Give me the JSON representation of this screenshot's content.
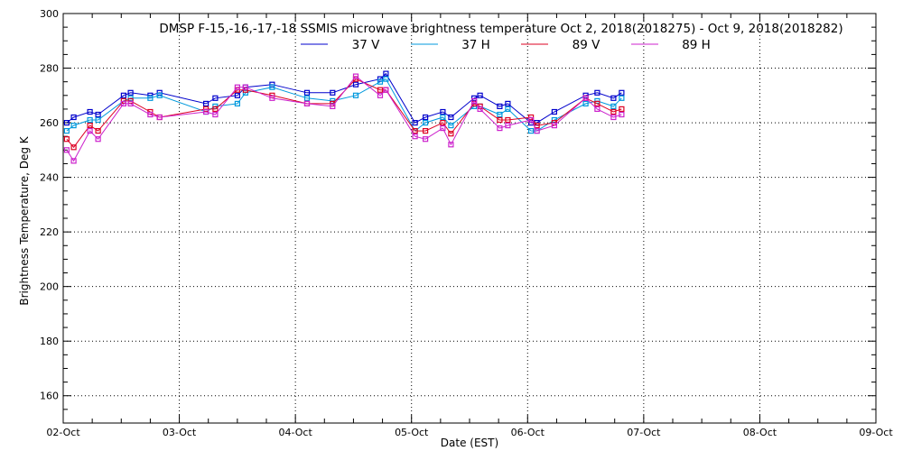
{
  "chart_data": {
    "type": "line",
    "title": "DMSP F-15,-16,-17,-18 SSMIS microwave brightness temperature Oct  2, 2018(2018275) - Oct  9, 2018(2018282)",
    "xlabel": "Date (EST)",
    "ylabel": "Brightness Temperature, Deg K",
    "xlim": [
      0,
      7
    ],
    "ylim": [
      150,
      300
    ],
    "x_ticks": [
      "02-Oct",
      "03-Oct",
      "04-Oct",
      "05-Oct",
      "06-Oct",
      "07-Oct",
      "08-Oct",
      "09-Oct"
    ],
    "y_ticks": [
      160,
      180,
      200,
      220,
      240,
      260,
      280,
      300
    ],
    "grid": true,
    "legend_position": "top-center",
    "series": [
      {
        "name": "37 V",
        "color": "#0000cc",
        "x": [
          0.03,
          0.09,
          0.23,
          0.3,
          0.52,
          0.58,
          0.75,
          0.83,
          1.23,
          1.31,
          1.5,
          1.57,
          1.8,
          2.1,
          2.32,
          2.52,
          2.73,
          2.78,
          3.03,
          3.12,
          3.27,
          3.34,
          3.54,
          3.59,
          3.76,
          3.83,
          4.03,
          4.08,
          4.23,
          4.5,
          4.6,
          4.74,
          4.81
        ],
        "y": [
          260,
          262,
          264,
          263,
          270,
          271,
          270,
          271,
          267,
          269,
          270,
          273,
          274,
          271,
          271,
          274,
          276,
          278,
          260,
          262,
          264,
          262,
          269,
          270,
          266,
          267,
          260,
          260,
          264,
          270,
          271,
          269,
          271
        ]
      },
      {
        "name": "37 H",
        "color": "#0099dd",
        "x": [
          0.03,
          0.09,
          0.23,
          0.3,
          0.52,
          0.58,
          0.75,
          0.83,
          1.23,
          1.31,
          1.5,
          1.57,
          1.8,
          2.1,
          2.32,
          2.52,
          2.73,
          2.78,
          3.03,
          3.12,
          3.27,
          3.34,
          3.54,
          3.59,
          3.76,
          3.83,
          4.03,
          4.08,
          4.23,
          4.5,
          4.6,
          4.74,
          4.81
        ],
        "y": [
          257,
          259,
          261,
          261,
          268,
          269,
          269,
          270,
          264,
          266,
          267,
          271,
          273,
          269,
          268,
          270,
          275,
          276,
          257,
          260,
          262,
          259,
          266,
          266,
          263,
          265,
          257,
          257,
          261,
          267,
          268,
          266,
          269
        ]
      },
      {
        "name": "89 V",
        "color": "#dd0022",
        "x": [
          0.03,
          0.09,
          0.23,
          0.3,
          0.52,
          0.58,
          0.75,
          0.83,
          1.23,
          1.31,
          1.5,
          1.57,
          1.8,
          2.1,
          2.32,
          2.52,
          2.73,
          2.78,
          3.03,
          3.12,
          3.27,
          3.34,
          3.54,
          3.59,
          3.76,
          3.83,
          4.03,
          4.08,
          4.23,
          4.5,
          4.6,
          4.74,
          4.81
        ],
        "y": [
          254,
          251,
          259,
          257,
          268,
          268,
          264,
          262,
          265,
          265,
          272,
          272,
          270,
          267,
          267,
          276,
          272,
          272,
          257,
          257,
          260,
          256,
          267,
          266,
          261,
          261,
          262,
          259,
          260,
          269,
          267,
          264,
          265
        ]
      },
      {
        "name": "89 H",
        "color": "#cc22cc",
        "x": [
          0.03,
          0.09,
          0.23,
          0.3,
          0.52,
          0.58,
          0.75,
          0.83,
          1.23,
          1.31,
          1.5,
          1.57,
          1.8,
          2.1,
          2.32,
          2.52,
          2.73,
          2.78,
          3.03,
          3.12,
          3.27,
          3.34,
          3.54,
          3.59,
          3.76,
          3.83,
          4.03,
          4.08,
          4.23,
          4.5,
          4.6,
          4.74,
          4.81
        ],
        "y": [
          250,
          246,
          257,
          254,
          267,
          267,
          263,
          262,
          264,
          263,
          273,
          273,
          269,
          267,
          266,
          277,
          270,
          272,
          255,
          254,
          258,
          252,
          268,
          265,
          258,
          259,
          261,
          257,
          259,
          269,
          265,
          262,
          263
        ]
      }
    ]
  }
}
